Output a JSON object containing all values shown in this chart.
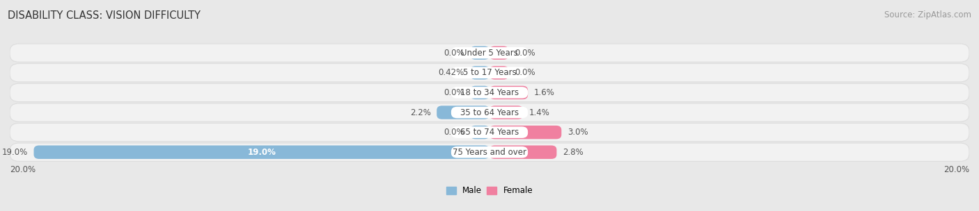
{
  "title": "DISABILITY CLASS: VISION DIFFICULTY",
  "source": "Source: ZipAtlas.com",
  "categories": [
    "Under 5 Years",
    "5 to 17 Years",
    "18 to 34 Years",
    "35 to 64 Years",
    "65 to 74 Years",
    "75 Years and over"
  ],
  "male_values": [
    0.0,
    0.42,
    0.0,
    2.2,
    0.0,
    19.0
  ],
  "female_values": [
    0.0,
    0.0,
    1.6,
    1.4,
    3.0,
    2.8
  ],
  "male_color": "#88b8d8",
  "female_color": "#f080a0",
  "max_val": 20.0,
  "min_display": 0.8,
  "bg_color": "#e8e8e8",
  "row_bg_color": "#f2f2f2",
  "row_bg_border": "#dddddd",
  "white": "#ffffff",
  "title_fontsize": 10.5,
  "source_fontsize": 8.5,
  "label_fontsize": 8.5,
  "cat_fontsize": 8.5,
  "value_color": "#555555",
  "cat_color": "#444444",
  "title_color": "#333333",
  "source_color": "#999999"
}
